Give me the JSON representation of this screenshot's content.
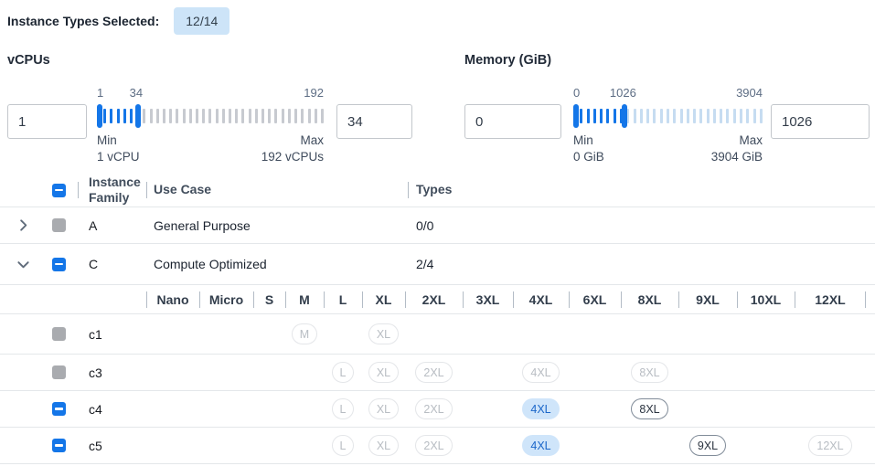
{
  "title": {
    "label": "Instance Types Selected:",
    "badge": "12/14"
  },
  "colors": {
    "accent": "#1476e8",
    "count_badge_bg": "#cde4f8",
    "selected_badge_bg": "#cfe5fa",
    "selected_badge_text": "#1a66c9",
    "enabled_badge_border": "#818c99",
    "disabled_badge_border": "#e4e6e9",
    "disabled_badge_text": "#b8bdc3",
    "disabled_checkbox": "#a9abaf",
    "divider": "#e4e7ea",
    "separator": "#b3bcc6",
    "tick_inactive_vcpus": "#c7cad0",
    "tick_inactive_memory": "#c6dcf1"
  },
  "sliders": {
    "vcpus": {
      "label": "vCPUs",
      "min": 1,
      "max": 192,
      "low": 1,
      "high": 34,
      "low_input": "1",
      "high_input": "34",
      "labels": {
        "low": "1",
        "high": "34",
        "end": "192"
      },
      "min_caption": "Min",
      "min_value": "1 vCPU",
      "max_caption": "Max",
      "max_value": "192 vCPUs",
      "inactive_color": "#c7cad0"
    },
    "memory": {
      "label": "Memory (GiB)",
      "min": 0,
      "max": 3904,
      "low": 0,
      "high": 1026,
      "low_input": "0",
      "high_input": "1026",
      "labels": {
        "low": "0",
        "high": "1026",
        "end": "3904"
      },
      "min_caption": "Min",
      "min_value": "0 GiB",
      "max_caption": "Max",
      "max_value": "3904 GiB",
      "inactive_color": "#c6dcf1"
    }
  },
  "table": {
    "header": {
      "family": "Instance Family",
      "use_case": "Use Case",
      "types": "Types"
    },
    "header_checkbox": "indeterminate",
    "size_columns": [
      "Nano",
      "Micro",
      "S",
      "M",
      "L",
      "XL",
      "2XL",
      "3XL",
      "4XL",
      "6XL",
      "8XL",
      "9XL",
      "10XL",
      "12XL"
    ],
    "family_rows": [
      {
        "expand": "collapsed",
        "checkbox": "disabled",
        "family": "A",
        "use_case": "General Purpose",
        "types": "0/0"
      },
      {
        "expand": "expanded",
        "checkbox": "indeterminate",
        "family": "C",
        "use_case": "Compute Optimized",
        "types": "2/4"
      }
    ],
    "size_rows": [
      {
        "checkbox": "disabled",
        "name": "c1",
        "badges": {
          "M": "disabled",
          "XL": "disabled"
        }
      },
      {
        "checkbox": "disabled",
        "name": "c3",
        "badges": {
          "L": "disabled",
          "XL": "disabled",
          "2XL": "disabled",
          "4XL": "disabled",
          "8XL": "disabled"
        }
      },
      {
        "checkbox": "indeterminate",
        "name": "c4",
        "badges": {
          "L": "disabled",
          "XL": "disabled",
          "2XL": "disabled",
          "4XL": "selected",
          "8XL": "enabled"
        }
      },
      {
        "checkbox": "indeterminate",
        "name": "c5",
        "badges": {
          "L": "disabled",
          "XL": "disabled",
          "2XL": "disabled",
          "4XL": "selected",
          "9XL": "enabled",
          "12XL": "disabled"
        }
      }
    ]
  }
}
